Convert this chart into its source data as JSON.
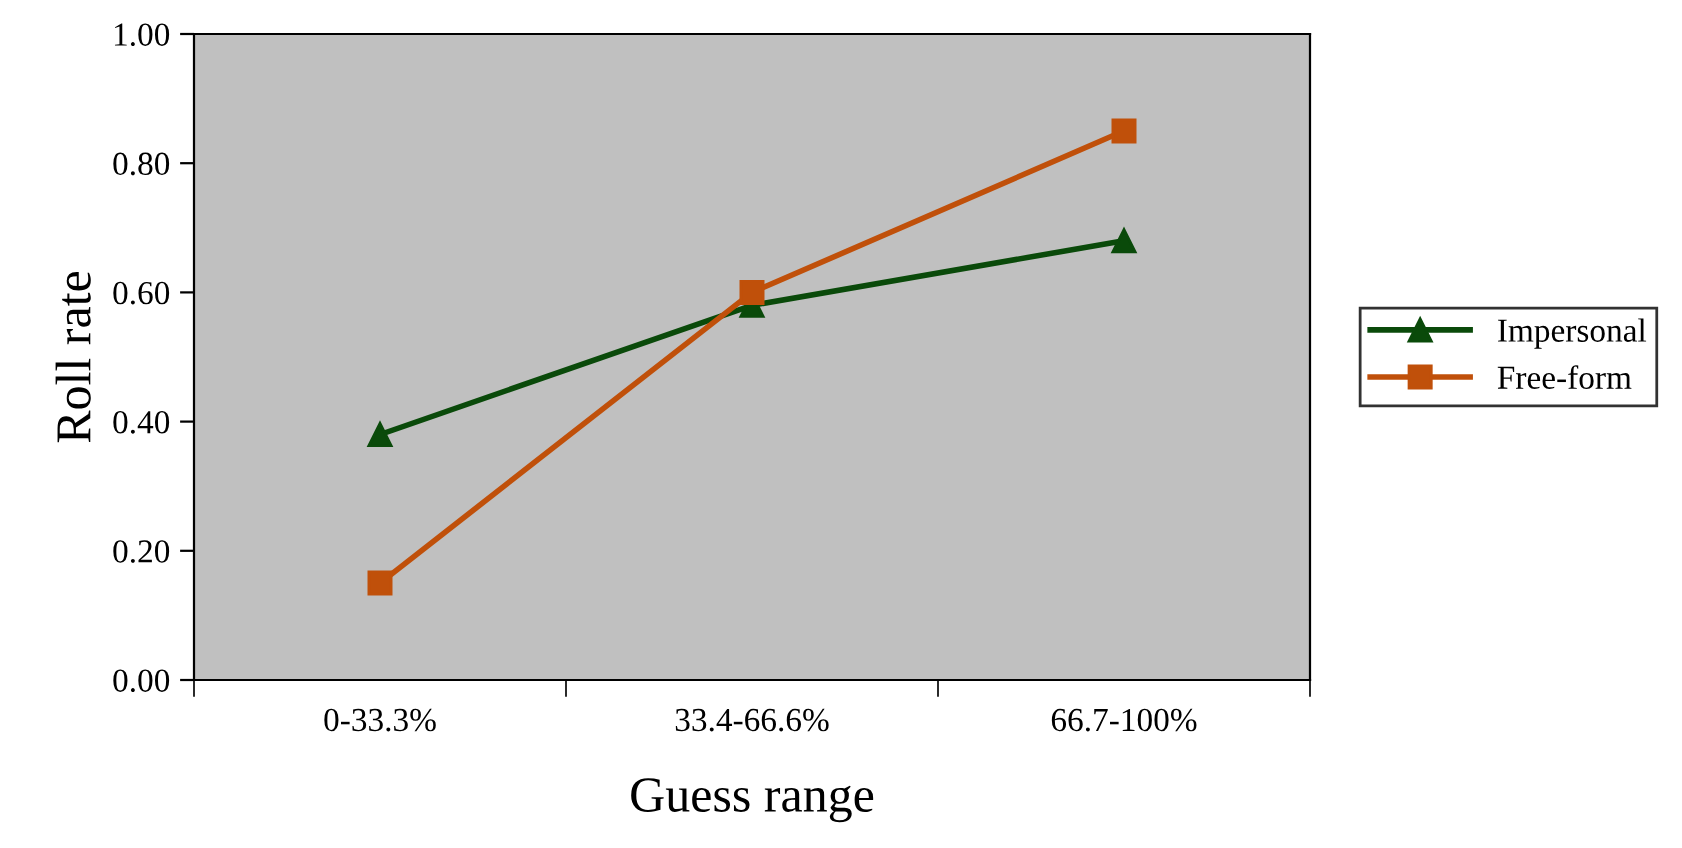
{
  "chart_data": {
    "type": "line",
    "xlabel": "Guess range",
    "ylabel": "Roll rate",
    "categories": [
      "0-33.3%",
      "33.4-66.6%",
      "66.7-100%"
    ],
    "series": [
      {
        "name": "Impersonal",
        "color": "#0a4a0a",
        "marker": "triangle",
        "values": [
          0.38,
          0.58,
          0.68
        ]
      },
      {
        "name": "Free-form",
        "color": "#c0500a",
        "marker": "square",
        "values": [
          0.15,
          0.6,
          0.85
        ]
      }
    ],
    "ylim": [
      0,
      1
    ],
    "yticks": [
      {
        "value": 0,
        "label": "0.00"
      },
      {
        "value": 0.2,
        "label": "0.20"
      },
      {
        "value": 0.4,
        "label": "0.40"
      },
      {
        "value": 0.6,
        "label": "0.60"
      },
      {
        "value": 0.8,
        "label": "0.80"
      },
      {
        "value": 1,
        "label": "1.00"
      }
    ],
    "grid": false,
    "legend": "right",
    "line_style": "solid"
  }
}
